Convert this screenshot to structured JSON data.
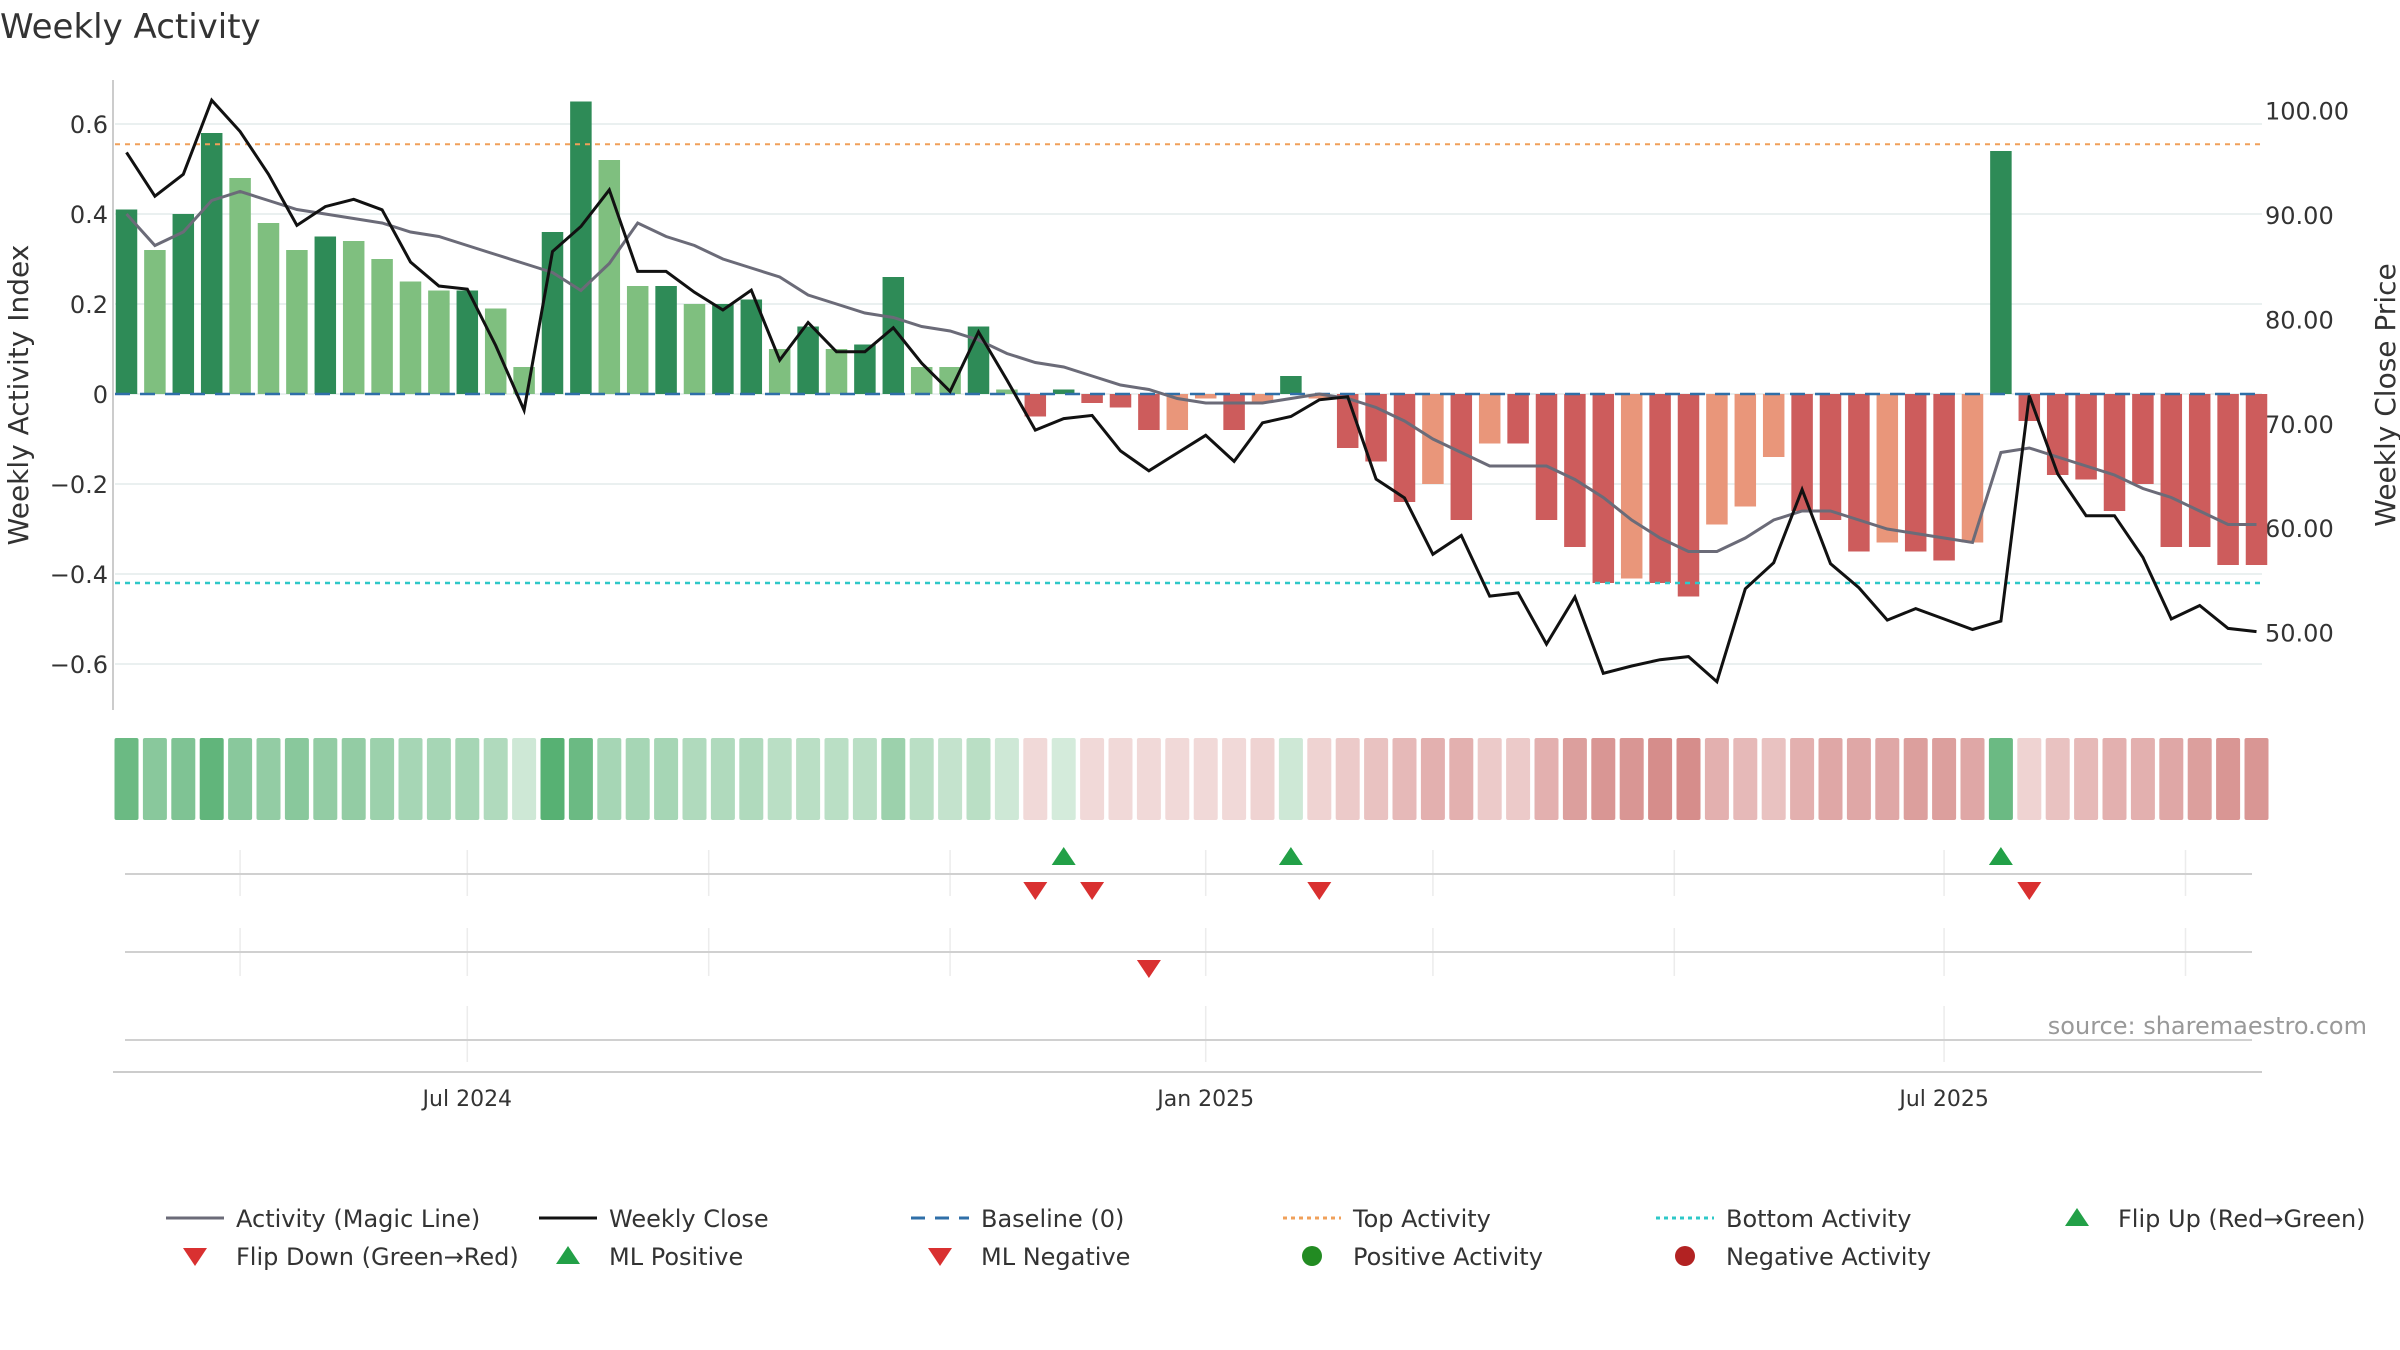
{
  "chart_data": {
    "type": "bar",
    "title": "Weekly Activity",
    "ylabel": "Weekly Activity Index",
    "y2label": "Weekly Close Price",
    "source": "source: sharemaestro.com",
    "ylim": [
      -0.7,
      0.7
    ],
    "y2lim": [
      43.9,
      104.3
    ],
    "yticks": [
      0.6,
      0.4,
      0.2,
      0,
      -0.2,
      -0.4,
      -0.6
    ],
    "ytick_labels": [
      "0.6",
      "0.4",
      "0.2",
      "0",
      "−0.2",
      "−0.4",
      "−0.6"
    ],
    "y2ticks": [
      100,
      90,
      80,
      70,
      60,
      50
    ],
    "y2tick_labels": [
      "100.00",
      "90.00",
      "80.00",
      "70.00",
      "60.00",
      "50.00"
    ],
    "xticks": [
      {
        "week": 12,
        "label": "Jul 2024"
      },
      {
        "week": 38,
        "label": "Jan 2025"
      },
      {
        "week": 64,
        "label": "Jul 2025"
      }
    ],
    "top_activity": 0.555,
    "bottom_activity": -0.42,
    "baseline": 0,
    "activity": [
      0.41,
      0.32,
      0.4,
      0.58,
      0.48,
      0.38,
      0.32,
      0.35,
      0.34,
      0.3,
      0.25,
      0.23,
      0.23,
      0.19,
      0.06,
      0.36,
      0.65,
      0.52,
      0.24,
      0.24,
      0.2,
      0.2,
      0.21,
      0.1,
      0.15,
      0.1,
      0.11,
      0.26,
      0.06,
      0.06,
      0.15,
      0.01,
      -0.05,
      0.01,
      -0.02,
      -0.03,
      -0.08,
      -0.08,
      -0.01,
      -0.08,
      -0.02,
      0.04,
      -0.01,
      -0.12,
      -0.15,
      -0.24,
      -0.2,
      -0.28,
      -0.11,
      -0.11,
      -0.28,
      -0.34,
      -0.42,
      -0.41,
      -0.42,
      -0.45,
      -0.29,
      -0.25,
      -0.14,
      -0.26,
      -0.28,
      -0.35,
      -0.33,
      -0.35,
      -0.37,
      -0.33,
      0.54,
      -0.06,
      -0.18,
      -0.19,
      -0.26,
      -0.2,
      -0.34,
      -0.34,
      -0.38,
      -0.38
    ],
    "bar_shades": [
      "dark",
      "light",
      "dark",
      "dark",
      "light",
      "light",
      "light",
      "dark",
      "light",
      "light",
      "light",
      "light",
      "dark",
      "light",
      "light",
      "dark",
      "dark",
      "light",
      "light",
      "dark",
      "light",
      "dark",
      "dark",
      "light",
      "dark",
      "light",
      "dark",
      "dark",
      "light",
      "light",
      "dark",
      "light",
      "dark",
      "dark",
      "dark",
      "dark",
      "dark",
      "light",
      "light",
      "dark",
      "light",
      "dark",
      "light",
      "dark",
      "dark",
      "dark",
      "light",
      "dark",
      "light",
      "dark",
      "dark",
      "dark",
      "dark",
      "light",
      "dark",
      "dark",
      "light",
      "light",
      "light",
      "dark",
      "dark",
      "dark",
      "light",
      "dark",
      "dark",
      "light",
      "dark",
      "dark",
      "dark",
      "dark",
      "dark",
      "dark",
      "dark",
      "dark",
      "dark",
      "dark"
    ],
    "magic_line": [
      0.4,
      0.33,
      0.36,
      0.43,
      0.45,
      0.43,
      0.41,
      0.4,
      0.39,
      0.38,
      0.36,
      0.35,
      0.33,
      0.31,
      0.29,
      0.27,
      0.23,
      0.29,
      0.38,
      0.35,
      0.33,
      0.3,
      0.28,
      0.26,
      0.22,
      0.2,
      0.18,
      0.17,
      0.15,
      0.14,
      0.12,
      0.09,
      0.07,
      0.06,
      0.04,
      0.02,
      0.01,
      -0.01,
      -0.02,
      -0.02,
      -0.02,
      -0.01,
      0.0,
      -0.01,
      -0.03,
      -0.06,
      -0.1,
      -0.13,
      -0.16,
      -0.16,
      -0.16,
      -0.19,
      -0.23,
      -0.28,
      -0.32,
      -0.35,
      -0.35,
      -0.32,
      -0.28,
      -0.26,
      -0.26,
      -0.28,
      -0.3,
      -0.31,
      -0.32,
      -0.33,
      -0.13,
      -0.12,
      -0.14,
      -0.16,
      -0.18,
      -0.21,
      -0.23,
      -0.26,
      -0.29,
      -0.29
    ],
    "weekly_close": [
      96.0,
      91.8,
      93.9,
      101.0,
      98.0,
      93.9,
      89.0,
      90.8,
      91.5,
      90.5,
      85.5,
      83.2,
      82.9,
      77.5,
      71.3,
      86.5,
      88.9,
      92.4,
      84.6,
      84.6,
      82.6,
      80.9,
      82.8,
      76.1,
      79.7,
      76.9,
      76.9,
      79.2,
      75.8,
      73.1,
      78.8,
      74.2,
      69.4,
      70.5,
      70.8,
      67.4,
      65.5,
      67.2,
      68.9,
      66.4,
      70.1,
      70.7,
      72.3,
      72.6,
      64.7,
      62.9,
      57.5,
      59.3,
      53.5,
      53.8,
      48.9,
      53.4,
      46.1,
      46.8,
      47.4,
      47.7,
      45.3,
      54.2,
      56.7,
      63.7,
      56.6,
      54.3,
      51.2,
      52.3,
      51.3,
      50.3,
      51.1,
      72.7,
      65.2,
      61.2,
      61.2,
      57.2,
      51.3,
      52.6,
      50.4,
      50.1
    ],
    "strip_opacity": [
      0.75,
      0.6,
      0.65,
      0.8,
      0.6,
      0.55,
      0.6,
      0.55,
      0.55,
      0.5,
      0.45,
      0.45,
      0.45,
      0.4,
      0.25,
      0.85,
      0.75,
      0.45,
      0.45,
      0.45,
      0.4,
      0.4,
      0.4,
      0.35,
      0.35,
      0.35,
      0.35,
      0.5,
      0.35,
      0.3,
      0.35,
      0.25,
      0.22,
      0.22,
      0.22,
      0.22,
      0.22,
      0.22,
      0.22,
      0.22,
      0.25,
      0.25,
      0.25,
      0.3,
      0.35,
      0.4,
      0.45,
      0.45,
      0.3,
      0.3,
      0.45,
      0.55,
      0.6,
      0.6,
      0.65,
      0.65,
      0.45,
      0.4,
      0.35,
      0.45,
      0.5,
      0.5,
      0.5,
      0.55,
      0.55,
      0.5,
      0.75,
      0.25,
      0.35,
      0.4,
      0.45,
      0.45,
      0.5,
      0.55,
      0.6,
      0.6
    ],
    "flip_up_weeks": [
      33,
      41,
      66
    ],
    "flip_down_weeks": [
      32,
      34,
      42,
      67
    ],
    "ml_negative_weeks": [
      36
    ],
    "legend": [
      {
        "label": "Activity (Magic Line)",
        "kind": "line",
        "color": "#6b6b78",
        "dash": "none"
      },
      {
        "label": "Weekly Close",
        "kind": "line",
        "color": "#111111",
        "dash": "none"
      },
      {
        "label": "Baseline (0)",
        "kind": "line",
        "color": "#2f6fa8",
        "dash": "14,10"
      },
      {
        "label": "Top Activity",
        "kind": "line",
        "color": "#f0a05a",
        "dash": "4,4"
      },
      {
        "label": "Bottom Activity",
        "kind": "line",
        "color": "#2ec8c8",
        "dash": "4,4"
      },
      {
        "label": "Flip Up (Red→Green)",
        "kind": "tri-up",
        "color": "#22a047"
      },
      {
        "label": "Flip Down (Green→Red)",
        "kind": "tri-down",
        "color": "#d93030"
      },
      {
        "label": "ML Positive",
        "kind": "tri-up",
        "color": "#22a047"
      },
      {
        "label": "ML Negative",
        "kind": "tri-down",
        "color": "#d93030"
      },
      {
        "label": "Positive Activity",
        "kind": "dot",
        "color": "#228b22"
      },
      {
        "label": "Negative Activity",
        "kind": "dot",
        "color": "#b22222"
      }
    ]
  },
  "colors": {
    "pos_dark": "#2e8b57",
    "pos_light": "#7fbf7f",
    "neg_dark": "#cd5c5c",
    "neg_light": "#e9967a",
    "strip_pos": "#3aa35a",
    "strip_neg": "#c0504d"
  }
}
